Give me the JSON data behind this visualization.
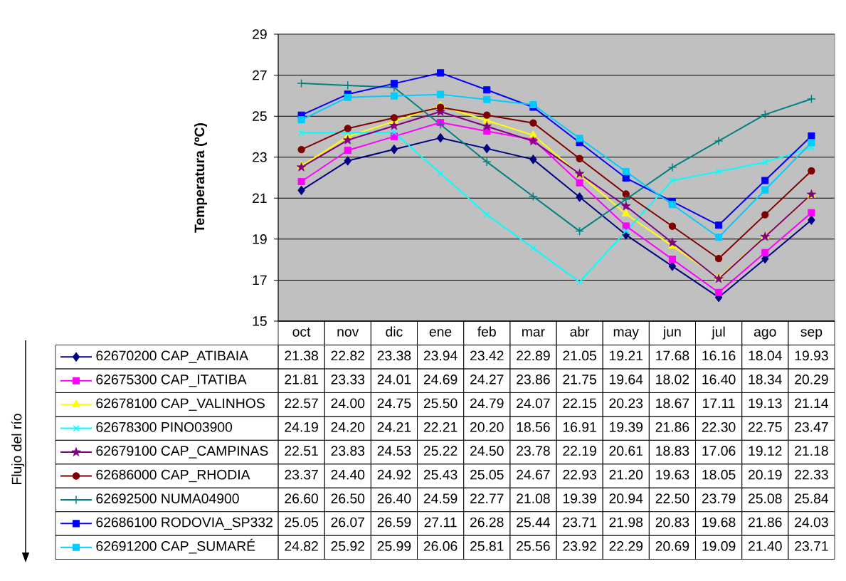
{
  "chart_data": {
    "type": "line",
    "ylabel": "Temperatura (ºC)",
    "annotations": [
      "Flujo del río"
    ],
    "categories": [
      "oct",
      "nov",
      "dic",
      "ene",
      "feb",
      "mar",
      "abr",
      "may",
      "jun",
      "jul",
      "ago",
      "sep"
    ],
    "ylim": [
      15,
      29
    ],
    "yticks": [
      15,
      17,
      19,
      21,
      23,
      25,
      27,
      29
    ],
    "grid": "y",
    "legend": "bottom left",
    "series": [
      {
        "name": "62670200 CAP_ATIBAIA",
        "color": "#000080",
        "marker": "diamond",
        "values": [
          21.38,
          22.82,
          23.38,
          23.94,
          23.42,
          22.89,
          21.05,
          19.21,
          17.68,
          16.16,
          18.04,
          19.93
        ],
        "value_labels": [
          "21.38",
          "22.82",
          "23.38",
          "23.94",
          "23.42",
          "22.89",
          "21.05",
          "19.21",
          "17.68",
          "16.16",
          "18.04",
          "19.93"
        ]
      },
      {
        "name": "62675300 CAP_ITATIBA",
        "color": "#ff00ff",
        "marker": "square",
        "values": [
          21.81,
          23.33,
          24.01,
          24.69,
          24.27,
          23.86,
          21.75,
          19.64,
          18.02,
          16.4,
          18.34,
          20.29
        ],
        "value_labels": [
          "21.81",
          "23.33",
          "24.01",
          "24.69",
          "24.27",
          "23.86",
          "21.75",
          "19.64",
          "18.02",
          "16.40",
          "18.34",
          "20.29"
        ]
      },
      {
        "name": "62678100 CAP_VALINHOS",
        "color": "#ffff00",
        "marker": "triangle",
        "values": [
          22.57,
          24.0,
          24.75,
          25.5,
          24.79,
          24.07,
          22.15,
          20.23,
          18.67,
          17.11,
          19.13,
          21.14
        ],
        "value_labels": [
          "22.57",
          "24.00",
          "24.75",
          "25.50",
          "24.79",
          "24.07",
          "22.15",
          "20.23",
          "18.67",
          "17.11",
          "19.13",
          "21.14"
        ]
      },
      {
        "name": "62678300 PINO03900",
        "color": "#00ffff",
        "marker": "x",
        "values": [
          24.19,
          24.2,
          24.21,
          22.21,
          20.2,
          18.56,
          16.91,
          19.39,
          21.86,
          22.3,
          22.75,
          23.47
        ],
        "value_labels": [
          "24.19",
          "24.20",
          "24.21",
          "22.21",
          "20.20",
          "18.56",
          "16.91",
          "19.39",
          "21.86",
          "22.30",
          "22.75",
          "23.47"
        ]
      },
      {
        "name": "62679100 CAP_CAMPINAS",
        "color": "#800080",
        "marker": "star",
        "values": [
          22.51,
          23.83,
          24.53,
          25.22,
          24.5,
          23.78,
          22.19,
          20.61,
          18.83,
          17.06,
          19.12,
          21.18
        ],
        "value_labels": [
          "22.51",
          "23.83",
          "24.53",
          "25.22",
          "24.50",
          "23.78",
          "22.19",
          "20.61",
          "18.83",
          "17.06",
          "19.12",
          "21.18"
        ]
      },
      {
        "name": "62686000 CAP_RHODIA",
        "color": "#800000",
        "marker": "circle",
        "values": [
          23.37,
          24.4,
          24.92,
          25.43,
          25.05,
          24.67,
          22.93,
          21.2,
          19.63,
          18.05,
          20.19,
          22.33
        ],
        "value_labels": [
          "23.37",
          "24.40",
          "24.92",
          "25.43",
          "25.05",
          "24.67",
          "22.93",
          "21.20",
          "19.63",
          "18.05",
          "20.19",
          "22.33"
        ]
      },
      {
        "name": "62692500 NUMA04900",
        "color": "#008080",
        "marker": "cross",
        "values": [
          26.6,
          26.5,
          26.4,
          24.59,
          22.77,
          21.08,
          19.39,
          20.94,
          22.5,
          23.79,
          25.08,
          25.84
        ],
        "value_labels": [
          "26.60",
          "26.50",
          "26.40",
          "24.59",
          "22.77",
          "21.08",
          "19.39",
          "20.94",
          "22.50",
          "23.79",
          "25.08",
          "25.84"
        ]
      },
      {
        "name": "62686100 RODOVIA_SP332",
        "color": "#0000ff",
        "marker": "square",
        "values": [
          25.05,
          26.07,
          26.59,
          27.11,
          26.28,
          25.44,
          23.71,
          21.98,
          20.83,
          19.68,
          21.86,
          24.03
        ],
        "value_labels": [
          "25.05",
          "26.07",
          "26.59",
          "27.11",
          "26.28",
          "25.44",
          "23.71",
          "21.98",
          "20.83",
          "19.68",
          "21.86",
          "24.03"
        ]
      },
      {
        "name": "62691200 CAP_SUMARÉ",
        "color": "#00ccff",
        "marker": "square",
        "values": [
          24.82,
          25.92,
          25.99,
          26.06,
          25.81,
          25.56,
          23.92,
          22.29,
          20.69,
          19.09,
          21.4,
          23.71
        ],
        "value_labels": [
          "24.82",
          "25.92",
          "25.99",
          "26.06",
          "25.81",
          "25.56",
          "23.92",
          "22.29",
          "20.69",
          "19.09",
          "21.40",
          "23.71"
        ]
      }
    ]
  }
}
